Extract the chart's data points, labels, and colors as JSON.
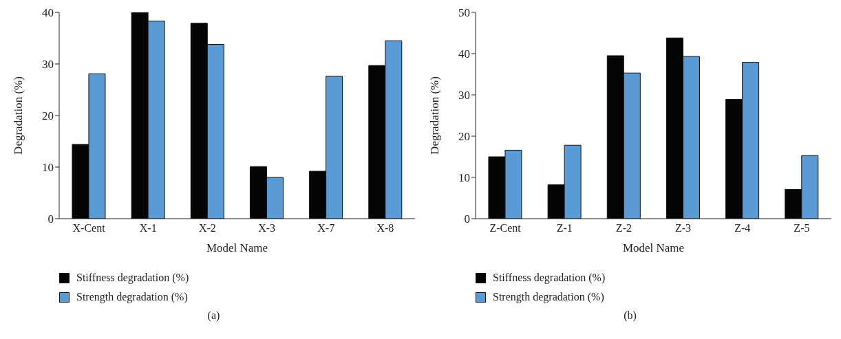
{
  "chart_data": [
    {
      "type": "bar",
      "categories": [
        "X-Cent",
        "X-1",
        "X-2",
        "X-3",
        "X-7",
        "X-8"
      ],
      "xlabel": "Model Name",
      "ylabel": "Degradation (%)",
      "ylim": [
        0,
        40
      ],
      "yticks": [
        0,
        10,
        20,
        30,
        40
      ],
      "legend": "bottom",
      "annotations": [
        "(a)"
      ],
      "series": [
        {
          "name": "Stiffness degradation (%)",
          "color": "#050505",
          "values": [
            14.4,
            40.0,
            37.9,
            10.1,
            9.2,
            29.7
          ]
        },
        {
          "name": "Strength degradation (%)",
          "color": "#5b9bd5",
          "values": [
            28.1,
            38.3,
            33.8,
            8.0,
            27.6,
            34.5
          ]
        }
      ]
    },
    {
      "type": "bar",
      "categories": [
        "Z-Cent",
        "Z-1",
        "Z-2",
        "Z-3",
        "Z-4",
        "Z-5"
      ],
      "xlabel": "Model Name",
      "ylabel": "Degradation (%)",
      "ylim": [
        0,
        50
      ],
      "yticks": [
        0,
        10,
        20,
        30,
        40,
        50
      ],
      "legend": "bottom",
      "annotations": [
        "(b)"
      ],
      "series": [
        {
          "name": "Stiffness degradation (%)",
          "color": "#050505",
          "values": [
            15.0,
            8.2,
            39.5,
            43.8,
            28.9,
            7.1
          ]
        },
        {
          "name": "Strength degradation (%)",
          "color": "#5b9bd5",
          "values": [
            16.6,
            17.8,
            35.3,
            39.3,
            37.9,
            15.3
          ]
        }
      ]
    }
  ]
}
